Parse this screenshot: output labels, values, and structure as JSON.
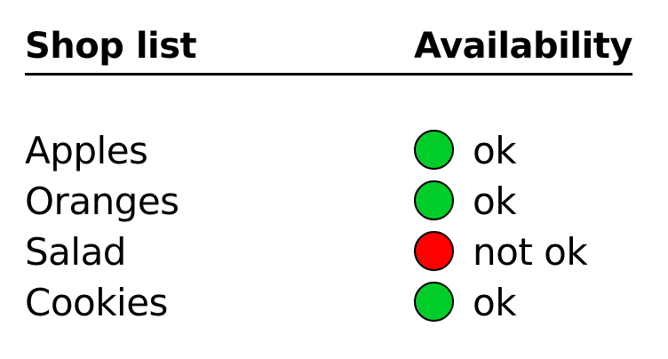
{
  "header": {
    "left_label": "Shop list",
    "right_label": "Availability"
  },
  "items": [
    {
      "name": "Apples",
      "status": "ok",
      "status_color": "#00cc2a"
    },
    {
      "name": "Oranges",
      "status": "ok",
      "status_color": "#00cc2a"
    },
    {
      "name": "Salad",
      "status": "not ok",
      "status_color": "#ff0000"
    },
    {
      "name": "Cookies",
      "status": "ok",
      "status_color": "#00cc2a"
    }
  ]
}
